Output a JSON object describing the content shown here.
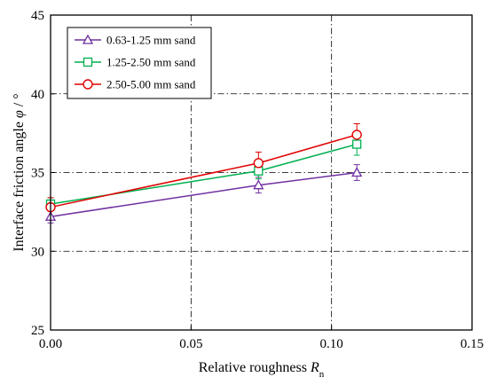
{
  "chart_data": {
    "type": "line",
    "title": "",
    "xlabel": {
      "main": "Relative roughness ",
      "var": "R",
      "sub": "n"
    },
    "ylabel": {
      "main": "Interface friction angle ",
      "var": "φ",
      "unit": " / °"
    },
    "xlim": [
      0,
      0.15
    ],
    "ylim": [
      25,
      45
    ],
    "xticks": [
      0,
      0.05,
      0.1,
      0.15
    ],
    "xtick_labels": [
      "0.00",
      "0.05",
      "0.10",
      "0.15"
    ],
    "yticks": [
      25,
      30,
      35,
      40,
      45
    ],
    "ytick_labels": [
      "25",
      "30",
      "35",
      "40",
      "45"
    ],
    "grid": {
      "style": "dash-dot",
      "x": true,
      "y": true
    },
    "legend": {
      "placement": "top-left"
    },
    "series": [
      {
        "name": "0.63-1.25 mm sand",
        "marker": "triangle",
        "color": "#7030A0",
        "x": [
          0.0,
          0.074,
          0.109
        ],
        "y": [
          32.2,
          34.2,
          35.0
        ],
        "err": [
          0.4,
          0.5,
          0.5
        ]
      },
      {
        "name": "1.25-2.50 mm sand",
        "marker": "square",
        "color": "#00B050",
        "x": [
          0.0,
          0.074,
          0.109
        ],
        "y": [
          33.0,
          35.1,
          36.8
        ],
        "err": [
          0.4,
          0.5,
          0.7
        ]
      },
      {
        "name": "2.50-5.00 mm sand",
        "marker": "circle",
        "color": "#E00000",
        "x": [
          0.0,
          0.074,
          0.109
        ],
        "y": [
          32.8,
          35.6,
          37.4
        ],
        "err": [
          0.6,
          0.7,
          0.7
        ]
      }
    ]
  }
}
